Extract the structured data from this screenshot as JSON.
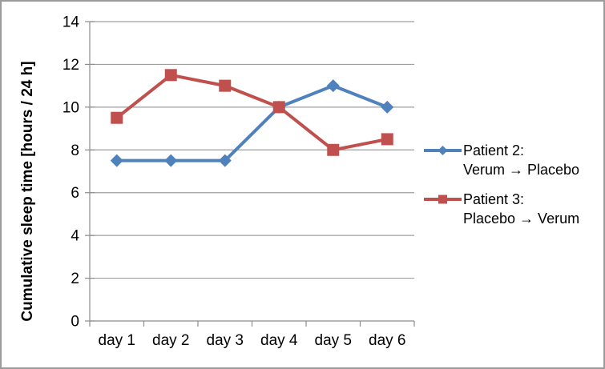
{
  "chart_data": {
    "type": "line",
    "title": "",
    "xlabel": "",
    "ylabel": "Cumulative sleep time [hours / 24 h]",
    "categories": [
      "day 1",
      "day 2",
      "day 3",
      "day 4",
      "day 5",
      "day 6"
    ],
    "ylim": [
      0,
      14
    ],
    "yticks": [
      0,
      2,
      4,
      6,
      8,
      10,
      12,
      14
    ],
    "grid": true,
    "legend_position": "right",
    "series": [
      {
        "name": "Patient 2: Verum → Placebo",
        "label_lines": [
          "Patient 2:",
          "Verum → Placebo"
        ],
        "marker": "diamond",
        "color": "#4F81BD",
        "values": [
          7.5,
          7.5,
          7.5,
          10,
          11,
          10
        ]
      },
      {
        "name": "Patient 3: Placebo → Verum",
        "label_lines": [
          "Patient 3:",
          "Placebo → Verum"
        ],
        "marker": "square",
        "color": "#C0504D",
        "values": [
          9.5,
          11.5,
          11,
          10,
          8,
          8.5
        ]
      }
    ],
    "colors": {
      "gridline": "#9e9e9e",
      "axis": "#8c8c8c",
      "text": "#000000",
      "frame_border": "#9b9b9b",
      "background": "#ffffff"
    }
  }
}
